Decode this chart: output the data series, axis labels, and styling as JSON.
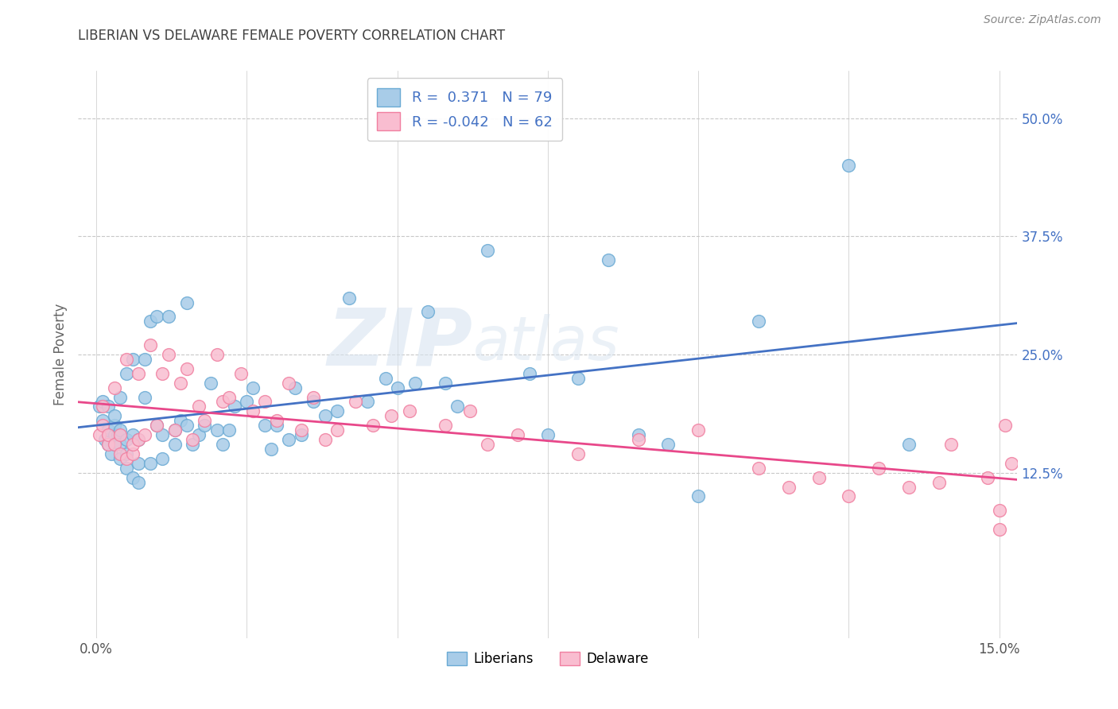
{
  "title": "LIBERIAN VS DELAWARE FEMALE POVERTY CORRELATION CHART",
  "source": "Source: ZipAtlas.com",
  "ylabel": "Female Poverty",
  "xlim": [
    -0.003,
    0.153
  ],
  "ylim": [
    -0.05,
    0.55
  ],
  "xticks": [
    0.0,
    0.025,
    0.05,
    0.075,
    0.1,
    0.125,
    0.15
  ],
  "xticklabels": [
    "0.0%",
    "",
    "",
    "",
    "",
    "",
    "15.0%"
  ],
  "ytick_positions": [
    0.125,
    0.25,
    0.375,
    0.5
  ],
  "ytick_labels": [
    "12.5%",
    "25.0%",
    "37.5%",
    "50.0%"
  ],
  "liberian_color": "#a8cce8",
  "liberian_edge_color": "#6aaad4",
  "delaware_color": "#f9bdd0",
  "delaware_edge_color": "#f07fa0",
  "liberian_line_color": "#4472c4",
  "delaware_line_color": "#e8488a",
  "R_liberian": 0.371,
  "N_liberian": 79,
  "R_delaware": -0.042,
  "N_delaware": 62,
  "background_color": "#ffffff",
  "grid_color": "#c8c8c8",
  "title_color": "#404040",
  "watermark_text": "ZIPatlas",
  "liberian_x": [
    0.0005,
    0.001,
    0.001,
    0.0015,
    0.002,
    0.002,
    0.002,
    0.0025,
    0.003,
    0.003,
    0.003,
    0.003,
    0.0035,
    0.004,
    0.004,
    0.004,
    0.004,
    0.005,
    0.005,
    0.005,
    0.005,
    0.006,
    0.006,
    0.006,
    0.007,
    0.007,
    0.007,
    0.008,
    0.008,
    0.009,
    0.009,
    0.01,
    0.01,
    0.011,
    0.011,
    0.012,
    0.013,
    0.013,
    0.014,
    0.015,
    0.015,
    0.016,
    0.017,
    0.018,
    0.019,
    0.02,
    0.021,
    0.022,
    0.023,
    0.025,
    0.026,
    0.028,
    0.029,
    0.03,
    0.032,
    0.033,
    0.034,
    0.036,
    0.038,
    0.04,
    0.042,
    0.045,
    0.048,
    0.05,
    0.053,
    0.055,
    0.058,
    0.06,
    0.065,
    0.072,
    0.075,
    0.08,
    0.085,
    0.09,
    0.095,
    0.1,
    0.11,
    0.125,
    0.135
  ],
  "liberian_y": [
    0.195,
    0.18,
    0.2,
    0.16,
    0.17,
    0.155,
    0.195,
    0.145,
    0.155,
    0.165,
    0.175,
    0.185,
    0.165,
    0.14,
    0.155,
    0.17,
    0.205,
    0.13,
    0.145,
    0.16,
    0.23,
    0.12,
    0.245,
    0.165,
    0.115,
    0.135,
    0.16,
    0.245,
    0.205,
    0.135,
    0.285,
    0.175,
    0.29,
    0.14,
    0.165,
    0.29,
    0.155,
    0.17,
    0.18,
    0.175,
    0.305,
    0.155,
    0.165,
    0.175,
    0.22,
    0.17,
    0.155,
    0.17,
    0.195,
    0.2,
    0.215,
    0.175,
    0.15,
    0.175,
    0.16,
    0.215,
    0.165,
    0.2,
    0.185,
    0.19,
    0.31,
    0.2,
    0.225,
    0.215,
    0.22,
    0.295,
    0.22,
    0.195,
    0.36,
    0.23,
    0.165,
    0.225,
    0.35,
    0.165,
    0.155,
    0.1,
    0.285,
    0.45,
    0.155
  ],
  "delaware_x": [
    0.0005,
    0.001,
    0.001,
    0.002,
    0.002,
    0.003,
    0.003,
    0.004,
    0.004,
    0.005,
    0.005,
    0.006,
    0.006,
    0.007,
    0.007,
    0.008,
    0.009,
    0.01,
    0.011,
    0.012,
    0.013,
    0.014,
    0.015,
    0.016,
    0.017,
    0.018,
    0.02,
    0.021,
    0.022,
    0.024,
    0.026,
    0.028,
    0.03,
    0.032,
    0.034,
    0.036,
    0.038,
    0.04,
    0.043,
    0.046,
    0.049,
    0.052,
    0.058,
    0.062,
    0.065,
    0.07,
    0.08,
    0.09,
    0.1,
    0.11,
    0.115,
    0.12,
    0.125,
    0.13,
    0.135,
    0.14,
    0.142,
    0.148,
    0.15,
    0.15,
    0.151,
    0.152
  ],
  "delaware_y": [
    0.165,
    0.175,
    0.195,
    0.155,
    0.165,
    0.155,
    0.215,
    0.145,
    0.165,
    0.14,
    0.245,
    0.145,
    0.155,
    0.16,
    0.23,
    0.165,
    0.26,
    0.175,
    0.23,
    0.25,
    0.17,
    0.22,
    0.235,
    0.16,
    0.195,
    0.18,
    0.25,
    0.2,
    0.205,
    0.23,
    0.19,
    0.2,
    0.18,
    0.22,
    0.17,
    0.205,
    0.16,
    0.17,
    0.2,
    0.175,
    0.185,
    0.19,
    0.175,
    0.19,
    0.155,
    0.165,
    0.145,
    0.16,
    0.17,
    0.13,
    0.11,
    0.12,
    0.1,
    0.13,
    0.11,
    0.115,
    0.155,
    0.12,
    0.085,
    0.065,
    0.175,
    0.135
  ]
}
